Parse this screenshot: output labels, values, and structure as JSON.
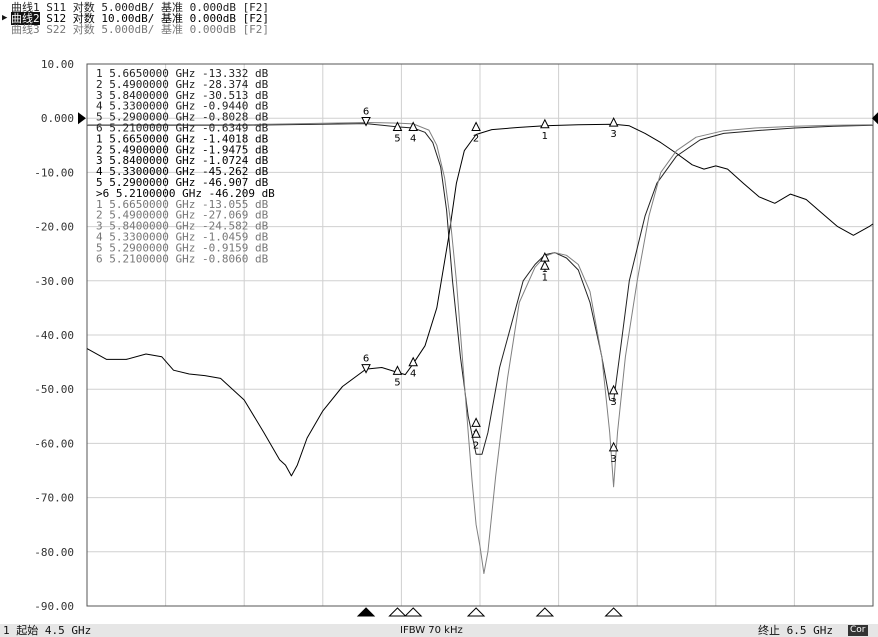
{
  "traces": [
    {
      "title": "曲线1 S11 对数 5.000dB/ 基准 0.000dB [F2]",
      "color": "#222222"
    },
    {
      "title_hl": "曲线2",
      "title_rest": " S12 对数 10.00dB/ 基准 0.000dB [F2]",
      "color": "#000000"
    },
    {
      "title": "曲线3 S22 对数 5.000dB/ 基准 0.000dB [F2]",
      "color": "#808080"
    }
  ],
  "status": {
    "start": "1 起始 4.5 GHz",
    "ifbw": "IFBW 70 kHz",
    "stop": "终止 6.5 GHz",
    "cor": "Cor"
  },
  "reference_value": "0.000",
  "chart_data": {
    "type": "line",
    "xlim": [
      4.5,
      6.5
    ],
    "ylim": [
      -90,
      10
    ],
    "x_unit": "GHz",
    "y_unit": "dB",
    "y_ticks": [
      "10.00",
      "0.000",
      "-10.00",
      "-20.00",
      "-30.00",
      "-40.00",
      "-50.00",
      "-60.00",
      "-70.00",
      "-80.00",
      "-90.00"
    ],
    "grid": true,
    "series": [
      {
        "name": "S11",
        "color": "#222222",
        "width": 1.0,
        "points": [
          [
            4.5,
            -1.3
          ],
          [
            4.9,
            -1.3
          ],
          [
            5.21,
            -1.0
          ],
          [
            5.29,
            -1.6
          ],
          [
            5.33,
            -1.8
          ],
          [
            5.36,
            -2.6
          ],
          [
            5.38,
            -4.5
          ],
          [
            5.4,
            -9
          ],
          [
            5.415,
            -17
          ],
          [
            5.43,
            -30
          ],
          [
            5.45,
            -44
          ],
          [
            5.47,
            -55
          ],
          [
            5.49,
            -62
          ],
          [
            5.505,
            -62
          ],
          [
            5.52,
            -58
          ],
          [
            5.55,
            -46
          ],
          [
            5.58,
            -38
          ],
          [
            5.61,
            -30
          ],
          [
            5.64,
            -27
          ],
          [
            5.665,
            -25.2
          ],
          [
            5.69,
            -24.8
          ],
          [
            5.72,
            -25.8
          ],
          [
            5.75,
            -28
          ],
          [
            5.78,
            -34
          ],
          [
            5.81,
            -44
          ],
          [
            5.83,
            -52
          ],
          [
            5.84,
            -52.2
          ],
          [
            5.855,
            -44
          ],
          [
            5.88,
            -30
          ],
          [
            5.92,
            -18
          ],
          [
            5.95,
            -12
          ],
          [
            6.0,
            -7
          ],
          [
            6.06,
            -4
          ],
          [
            6.12,
            -2.8
          ],
          [
            6.2,
            -2.3
          ],
          [
            6.3,
            -1.8
          ],
          [
            6.4,
            -1.5
          ],
          [
            6.5,
            -1.3
          ]
        ]
      },
      {
        "name": "S12",
        "color": "#000000",
        "width": 1.0,
        "points": [
          [
            4.5,
            -42.5
          ],
          [
            4.55,
            -44.5
          ],
          [
            4.6,
            -44.5
          ],
          [
            4.65,
            -43.5
          ],
          [
            4.69,
            -44
          ],
          [
            4.72,
            -46.5
          ],
          [
            4.76,
            -47.2
          ],
          [
            4.8,
            -47.5
          ],
          [
            4.84,
            -48
          ],
          [
            4.9,
            -52
          ],
          [
            4.95,
            -58
          ],
          [
            4.99,
            -63
          ],
          [
            5.005,
            -64
          ],
          [
            5.02,
            -66
          ],
          [
            5.035,
            -64
          ],
          [
            5.06,
            -59
          ],
          [
            5.1,
            -54
          ],
          [
            5.15,
            -49.5
          ],
          [
            5.21,
            -46.3
          ],
          [
            5.25,
            -46
          ],
          [
            5.29,
            -46.9
          ],
          [
            5.31,
            -47.3
          ],
          [
            5.33,
            -45.3
          ],
          [
            5.36,
            -42
          ],
          [
            5.39,
            -35
          ],
          [
            5.42,
            -22
          ],
          [
            5.44,
            -12
          ],
          [
            5.46,
            -6
          ],
          [
            5.49,
            -3
          ],
          [
            5.53,
            -2.1
          ],
          [
            5.6,
            -1.7
          ],
          [
            5.665,
            -1.4
          ],
          [
            5.75,
            -1.2
          ],
          [
            5.84,
            -1.1
          ],
          [
            5.88,
            -1.4
          ],
          [
            5.92,
            -2.8
          ],
          [
            5.96,
            -4.5
          ],
          [
            6.0,
            -6.5
          ],
          [
            6.04,
            -8.6
          ],
          [
            6.07,
            -9.4
          ],
          [
            6.1,
            -8.8
          ],
          [
            6.13,
            -9.4
          ],
          [
            6.17,
            -12
          ],
          [
            6.21,
            -14.5
          ],
          [
            6.25,
            -15.7
          ],
          [
            6.29,
            -14
          ],
          [
            6.33,
            -15
          ],
          [
            6.37,
            -17.5
          ],
          [
            6.41,
            -20
          ],
          [
            6.45,
            -21.6
          ],
          [
            6.49,
            -20
          ],
          [
            6.5,
            -19.5
          ]
        ]
      },
      {
        "name": "S22",
        "color": "#808080",
        "width": 1.0,
        "points": [
          [
            4.5,
            -1.2
          ],
          [
            4.9,
            -1.2
          ],
          [
            5.21,
            -0.8
          ],
          [
            5.29,
            -0.9
          ],
          [
            5.33,
            -1.05
          ],
          [
            5.37,
            -2.2
          ],
          [
            5.39,
            -5
          ],
          [
            5.41,
            -11
          ],
          [
            5.425,
            -19
          ],
          [
            5.44,
            -30
          ],
          [
            5.455,
            -44
          ],
          [
            5.47,
            -58
          ],
          [
            5.48,
            -67
          ],
          [
            5.49,
            -75
          ],
          [
            5.5,
            -79
          ],
          [
            5.51,
            -84
          ],
          [
            5.52,
            -80
          ],
          [
            5.54,
            -66
          ],
          [
            5.57,
            -48
          ],
          [
            5.6,
            -34
          ],
          [
            5.64,
            -27.5
          ],
          [
            5.665,
            -25.5
          ],
          [
            5.69,
            -24.8
          ],
          [
            5.72,
            -25.3
          ],
          [
            5.75,
            -27
          ],
          [
            5.78,
            -32
          ],
          [
            5.81,
            -44
          ],
          [
            5.83,
            -58
          ],
          [
            5.84,
            -68
          ],
          [
            5.85,
            -58
          ],
          [
            5.87,
            -44
          ],
          [
            5.9,
            -30
          ],
          [
            5.93,
            -18
          ],
          [
            5.96,
            -10
          ],
          [
            6.0,
            -6
          ],
          [
            6.05,
            -3.5
          ],
          [
            6.12,
            -2.3
          ],
          [
            6.2,
            -1.8
          ],
          [
            6.3,
            -1.5
          ],
          [
            6.4,
            -1.3
          ],
          [
            6.5,
            -1.2
          ]
        ]
      }
    ],
    "marker_table": [
      {
        "num": "1",
        "freq": "5.6650000",
        "unit_f": "GHz",
        "val": "-13.332",
        "unit_v": "dB",
        "trace": 1
      },
      {
        "num": "2",
        "freq": "5.4900000",
        "unit_f": "GHz",
        "val": "-28.374",
        "unit_v": "dB",
        "trace": 1
      },
      {
        "num": "3",
        "freq": "5.8400000",
        "unit_f": "GHz",
        "val": "-30.513",
        "unit_v": "dB",
        "trace": 1
      },
      {
        "num": "4",
        "freq": "5.3300000",
        "unit_f": "GHz",
        "val": "-0.9440",
        "unit_v": "dB",
        "trace": 1
      },
      {
        "num": "5",
        "freq": "5.2900000",
        "unit_f": "GHz",
        "val": "-0.8028",
        "unit_v": "dB",
        "trace": 1
      },
      {
        "num": "6",
        "freq": "5.2100000",
        "unit_f": "GHz",
        "val": "-0.6349",
        "unit_v": "dB",
        "trace": 1
      },
      {
        "num": "1",
        "freq": "5.6650000",
        "unit_f": "GHz",
        "val": "-1.4018",
        "unit_v": "dB",
        "trace": 2
      },
      {
        "num": "2",
        "freq": "5.4900000",
        "unit_f": "GHz",
        "val": "-1.9475",
        "unit_v": "dB",
        "trace": 2
      },
      {
        "num": "3",
        "freq": "5.8400000",
        "unit_f": "GHz",
        "val": "-1.0724",
        "unit_v": "dB",
        "trace": 2
      },
      {
        "num": "4",
        "freq": "5.3300000",
        "unit_f": "GHz",
        "val": "-45.262",
        "unit_v": "dB",
        "trace": 2
      },
      {
        "num": "5",
        "freq": "5.2900000",
        "unit_f": "GHz",
        "val": "-46.907",
        "unit_v": "dB",
        "trace": 2
      },
      {
        "num": ">6",
        "freq": "5.2100000",
        "unit_f": "GHz",
        "val": "-46.209",
        "unit_v": "dB",
        "trace": 2
      },
      {
        "num": "1",
        "freq": "5.6650000",
        "unit_f": "GHz",
        "val": "-13.055",
        "unit_v": "dB",
        "trace": 3
      },
      {
        "num": "2",
        "freq": "5.4900000",
        "unit_f": "GHz",
        "val": "-27.069",
        "unit_v": "dB",
        "trace": 3
      },
      {
        "num": "3",
        "freq": "5.8400000",
        "unit_f": "GHz",
        "val": "-24.582",
        "unit_v": "dB",
        "trace": 3
      },
      {
        "num": "4",
        "freq": "5.3300000",
        "unit_f": "GHz",
        "val": "-1.0459",
        "unit_v": "dB",
        "trace": 3
      },
      {
        "num": "5",
        "freq": "5.2900000",
        "unit_f": "GHz",
        "val": "-0.9159",
        "unit_v": "dB",
        "trace": 3
      },
      {
        "num": "6",
        "freq": "5.2100000",
        "unit_f": "GHz",
        "val": "-0.8060",
        "unit_v": "dB",
        "trace": 3
      }
    ],
    "trace_markers": [
      {
        "label": "6",
        "x": 5.21,
        "y": -0.6,
        "trace": "S12"
      },
      {
        "label": "5",
        "x": 5.29,
        "y": -1.9,
        "trace": "S12"
      },
      {
        "label": "4",
        "x": 5.33,
        "y": -1.9,
        "trace": "S12"
      },
      {
        "label": "2",
        "x": 5.49,
        "y": -1.9,
        "trace": "S12"
      },
      {
        "label": "1",
        "x": 5.665,
        "y": -1.4,
        "trace": "S12"
      },
      {
        "label": "3",
        "x": 5.84,
        "y": -1.1,
        "trace": "S12"
      },
      {
        "label": "6",
        "x": 5.21,
        "y": -46.2,
        "trace": "S12"
      },
      {
        "label": "5",
        "x": 5.29,
        "y": -46.9,
        "trace": "S12"
      },
      {
        "label": "4",
        "x": 5.33,
        "y": -45.3,
        "trace": "S12"
      },
      {
        "label": "2",
        "x": 5.49,
        "y": -56.5,
        "trace": "S11"
      },
      {
        "label": "2",
        "x": 5.49,
        "y": -58.5,
        "trace": "S22"
      },
      {
        "label": "1",
        "x": 5.665,
        "y": -26.0,
        "trace": "S11"
      },
      {
        "label": "1",
        "x": 5.665,
        "y": -27.5,
        "trace": "S22"
      },
      {
        "label": "3",
        "x": 5.84,
        "y": -50.5,
        "trace": "S11"
      },
      {
        "label": "3",
        "x": 5.84,
        "y": -61.0,
        "trace": "S22"
      }
    ],
    "axis_markers": [
      {
        "x": 5.21,
        "filled": true
      },
      {
        "x": 5.29,
        "filled": false
      },
      {
        "x": 5.33,
        "filled": false
      },
      {
        "x": 5.49,
        "filled": false
      },
      {
        "x": 5.665,
        "filled": false
      },
      {
        "x": 5.84,
        "filled": false
      }
    ]
  }
}
